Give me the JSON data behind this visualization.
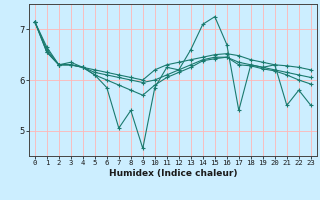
{
  "xlabel": "Humidex (Indice chaleur)",
  "bg_color": "#cceeff",
  "grid_color": "#ffb6b6",
  "line_color": "#1a7a6e",
  "series1_x": [
    0,
    1,
    2,
    3,
    4,
    5,
    6,
    7,
    8,
    9,
    10,
    11,
    12,
    13,
    14,
    15,
    16,
    17,
    18,
    19,
    20,
    21,
    22,
    23
  ],
  "series1_y": [
    7.15,
    6.65,
    6.3,
    6.35,
    6.25,
    6.1,
    5.85,
    5.05,
    5.4,
    4.65,
    5.85,
    6.25,
    6.2,
    6.6,
    7.1,
    7.25,
    6.7,
    5.4,
    6.3,
    6.25,
    6.3,
    5.5,
    5.8,
    5.5
  ],
  "series2_x": [
    0,
    1,
    2,
    3,
    4,
    5,
    6,
    7,
    8,
    9,
    10,
    11,
    12,
    13,
    14,
    15,
    16,
    17,
    18,
    19,
    20,
    21,
    22,
    23
  ],
  "series2_y": [
    7.15,
    6.55,
    6.3,
    6.3,
    6.25,
    6.2,
    6.15,
    6.1,
    6.05,
    6.0,
    6.2,
    6.3,
    6.35,
    6.4,
    6.45,
    6.5,
    6.52,
    6.48,
    6.4,
    6.35,
    6.3,
    6.28,
    6.25,
    6.2
  ],
  "series3_x": [
    0,
    1,
    2,
    3,
    4,
    5,
    6,
    7,
    8,
    9,
    10,
    11,
    12,
    13,
    14,
    15,
    16,
    17,
    18,
    19,
    20,
    21,
    22,
    23
  ],
  "series3_y": [
    7.15,
    6.55,
    6.3,
    6.3,
    6.25,
    6.15,
    6.1,
    6.05,
    6.0,
    5.95,
    6.0,
    6.1,
    6.2,
    6.3,
    6.4,
    6.45,
    6.45,
    6.35,
    6.3,
    6.25,
    6.2,
    6.15,
    6.1,
    6.05
  ],
  "series4_x": [
    0,
    1,
    2,
    3,
    4,
    5,
    6,
    7,
    8,
    9,
    10,
    11,
    12,
    13,
    14,
    15,
    16,
    17,
    18,
    19,
    20,
    21,
    22,
    23
  ],
  "series4_y": [
    7.15,
    6.6,
    6.3,
    6.3,
    6.25,
    6.1,
    6.0,
    5.9,
    5.8,
    5.7,
    5.9,
    6.05,
    6.15,
    6.25,
    6.38,
    6.42,
    6.45,
    6.3,
    6.28,
    6.22,
    6.18,
    6.1,
    6.0,
    5.92
  ],
  "ylim": [
    4.5,
    7.5
  ],
  "yticks": [
    5,
    6,
    7
  ],
  "xticks": [
    0,
    1,
    2,
    3,
    4,
    5,
    6,
    7,
    8,
    9,
    10,
    11,
    12,
    13,
    14,
    15,
    16,
    17,
    18,
    19,
    20,
    21,
    22,
    23
  ]
}
